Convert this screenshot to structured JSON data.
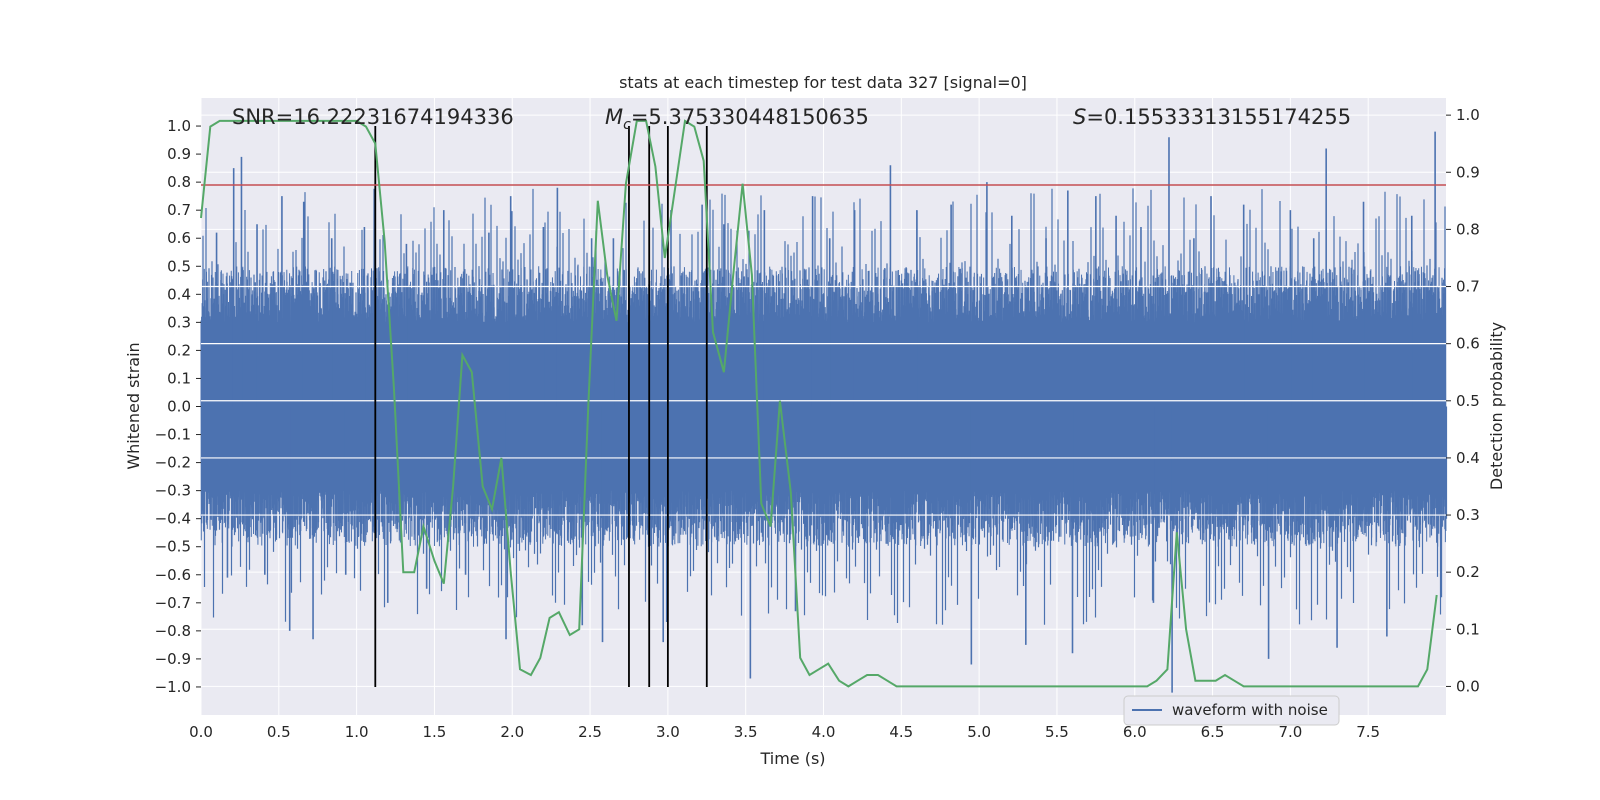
{
  "chart_data": {
    "type": "line",
    "title": "stats at each timestep for test data 327 [signal=0]",
    "xlabel": "Time (s)",
    "ylabel": "Whitened strain",
    "y2label": "Detection probability",
    "xlim": [
      0.0,
      8.0
    ],
    "ylim": [
      -1.1,
      1.1
    ],
    "y2lim": [
      -0.05,
      1.03
    ],
    "xticks": [
      "0.0",
      "0.5",
      "1.0",
      "1.5",
      "2.0",
      "2.5",
      "3.0",
      "3.5",
      "4.0",
      "4.5",
      "5.0",
      "5.5",
      "6.0",
      "6.5",
      "7.0",
      "7.5"
    ],
    "yticks": [
      "1.0",
      "0.9",
      "0.8",
      "0.7",
      "0.6",
      "0.5",
      "0.4",
      "0.3",
      "0.2",
      "0.1",
      "0.0",
      "−0.1",
      "−0.2",
      "−0.3",
      "−0.4",
      "−0.5",
      "−0.6",
      "−0.7",
      "−0.8",
      "−0.9",
      "−1.0"
    ],
    "y2ticks": [
      "1.0",
      "0.9",
      "0.8",
      "0.7",
      "0.6",
      "0.5",
      "0.4",
      "0.3",
      "0.2",
      "0.1",
      "0.0"
    ],
    "grid": true,
    "legend_position": "lower-right",
    "annotations": {
      "snr": "SNR=16.22231674194336",
      "mc_prefix": "M",
      "mc_sub": "c",
      "mc_value": "=5.375330448150635",
      "s_prefix": "S",
      "s_value": "=0.15533313155174255"
    },
    "series": [
      {
        "name": "waveform with noise",
        "axis": "left",
        "color": "#4c72b0",
        "style": "dense noise with typical amplitude approx ±0.4 and occasional spikes to ±1.0"
      },
      {
        "axis": "right",
        "color": "#55a868",
        "x": [
          0.0,
          0.06,
          0.12,
          0.2,
          0.3,
          0.4,
          0.5,
          0.6,
          0.7,
          0.8,
          0.9,
          1.0,
          1.06,
          1.12,
          1.18,
          1.24,
          1.3,
          1.37,
          1.43,
          1.5,
          1.56,
          1.62,
          1.68,
          1.74,
          1.81,
          1.87,
          1.93,
          1.99,
          2.05,
          2.12,
          2.18,
          2.24,
          2.3,
          2.37,
          2.43,
          2.49,
          2.55,
          2.61,
          2.67,
          2.73,
          2.8,
          2.86,
          2.92,
          2.98,
          3.04,
          3.11,
          3.17,
          3.23,
          3.29,
          3.36,
          3.42,
          3.48,
          3.54,
          3.6,
          3.66,
          3.72,
          3.79,
          3.85,
          3.91,
          3.97,
          4.03,
          4.1,
          4.16,
          4.22,
          4.28,
          4.35,
          4.41,
          4.47,
          4.53,
          4.6,
          4.66,
          4.72,
          4.78,
          4.84,
          4.9,
          4.97,
          5.03,
          5.09,
          5.15,
          5.21,
          5.28,
          5.34,
          5.4,
          5.46,
          5.52,
          5.59,
          5.65,
          5.71,
          5.77,
          5.83,
          5.9,
          5.96,
          6.02,
          6.08,
          6.14,
          6.21,
          6.27,
          6.33,
          6.39,
          6.45,
          6.52,
          6.58,
          6.64,
          6.7,
          6.76,
          6.83,
          6.89,
          6.95,
          7.01,
          7.07,
          7.14,
          7.2,
          7.26,
          7.32,
          7.38,
          7.45,
          7.51,
          7.57,
          7.63,
          7.7,
          7.76,
          7.82,
          7.88,
          7.94
        ],
        "values": [
          0.82,
          0.98,
          0.99,
          0.99,
          0.99,
          0.99,
          0.99,
          0.99,
          0.99,
          0.99,
          0.99,
          0.99,
          0.98,
          0.95,
          0.78,
          0.52,
          0.2,
          0.2,
          0.28,
          0.22,
          0.18,
          0.35,
          0.58,
          0.55,
          0.35,
          0.31,
          0.4,
          0.2,
          0.03,
          0.02,
          0.05,
          0.12,
          0.13,
          0.09,
          0.1,
          0.5,
          0.85,
          0.72,
          0.64,
          0.88,
          0.99,
          0.99,
          0.91,
          0.75,
          0.86,
          0.99,
          0.98,
          0.92,
          0.62,
          0.55,
          0.72,
          0.88,
          0.72,
          0.32,
          0.28,
          0.5,
          0.34,
          0.05,
          0.02,
          0.03,
          0.04,
          0.01,
          0.0,
          0.01,
          0.02,
          0.02,
          0.01,
          0.0,
          0.0,
          0.0,
          0.0,
          0.0,
          0.0,
          0.0,
          0.0,
          0.0,
          0.0,
          0.0,
          0.0,
          0.0,
          0.0,
          0.0,
          0.0,
          0.0,
          0.0,
          0.0,
          0.0,
          0.0,
          0.0,
          0.0,
          0.0,
          0.0,
          0.0,
          0.0,
          0.01,
          0.03,
          0.27,
          0.1,
          0.01,
          0.01,
          0.01,
          0.02,
          0.01,
          0.0,
          0.0,
          0.0,
          0.0,
          0.0,
          0.0,
          0.0,
          0.0,
          0.0,
          0.0,
          0.0,
          0.0,
          0.0,
          0.0,
          0.0,
          0.0,
          0.0,
          0.0,
          0.0,
          0.03,
          0.16
        ]
      }
    ],
    "threshold_line": {
      "axis": "left",
      "y": 0.79,
      "color": "#c44e52"
    },
    "vertical_lines": {
      "x": [
        1.12,
        2.75,
        2.88,
        3.0,
        3.25
      ],
      "y_from": -1.0,
      "y_to": 1.0,
      "color": "#000000"
    },
    "noise_spikes": [
      {
        "x": 0.1,
        "v": 0.62
      },
      {
        "x": 0.17,
        "v": -0.61
      },
      {
        "x": 0.21,
        "v": 0.85
      },
      {
        "x": 0.26,
        "v": 0.89
      },
      {
        "x": 0.36,
        "v": 0.65
      },
      {
        "x": 0.41,
        "v": -0.6
      },
      {
        "x": 0.52,
        "v": 0.75
      },
      {
        "x": 0.57,
        "v": -0.8
      },
      {
        "x": 0.66,
        "v": 0.73
      },
      {
        "x": 0.72,
        "v": -0.83
      },
      {
        "x": 0.84,
        "v": 0.6
      },
      {
        "x": 0.93,
        "v": -0.6
      },
      {
        "x": 1.05,
        "v": 0.64
      },
      {
        "x": 1.2,
        "v": -0.7
      },
      {
        "x": 1.32,
        "v": 0.58
      },
      {
        "x": 1.45,
        "v": -0.65
      },
      {
        "x": 1.56,
        "v": 0.7
      },
      {
        "x": 1.7,
        "v": -0.6
      },
      {
        "x": 1.85,
        "v": 0.62
      },
      {
        "x": 1.96,
        "v": -0.83
      },
      {
        "x": 1.99,
        "v": 0.75
      },
      {
        "x": 2.2,
        "v": 0.64
      },
      {
        "x": 2.29,
        "v": 0.78
      },
      {
        "x": 2.45,
        "v": -0.78
      },
      {
        "x": 2.51,
        "v": 0.6
      },
      {
        "x": 2.58,
        "v": -0.84
      },
      {
        "x": 2.65,
        "v": 0.6
      },
      {
        "x": 2.97,
        "v": -0.84
      },
      {
        "x": 3.02,
        "v": 0.7
      },
      {
        "x": 3.22,
        "v": 0.72
      },
      {
        "x": 3.36,
        "v": 0.65
      },
      {
        "x": 3.53,
        "v": -0.97
      },
      {
        "x": 3.62,
        "v": 0.7
      },
      {
        "x": 3.82,
        "v": -0.73
      },
      {
        "x": 3.93,
        "v": 0.75
      },
      {
        "x": 4.04,
        "v": 0.6
      },
      {
        "x": 4.2,
        "v": 0.7
      },
      {
        "x": 4.43,
        "v": 0.86
      },
      {
        "x": 4.6,
        "v": 0.7
      },
      {
        "x": 4.82,
        "v": 0.72
      },
      {
        "x": 4.95,
        "v": -0.92
      },
      {
        "x": 5.05,
        "v": 0.8
      },
      {
        "x": 5.21,
        "v": 0.68
      },
      {
        "x": 5.3,
        "v": -0.85
      },
      {
        "x": 5.43,
        "v": 0.6
      },
      {
        "x": 5.57,
        "v": 0.77
      },
      {
        "x": 5.6,
        "v": -0.88
      },
      {
        "x": 5.75,
        "v": 0.75
      },
      {
        "x": 5.88,
        "v": 0.68
      },
      {
        "x": 6.04,
        "v": 0.64
      },
      {
        "x": 6.12,
        "v": -0.7
      },
      {
        "x": 6.22,
        "v": 0.96
      },
      {
        "x": 6.24,
        "v": -1.02
      },
      {
        "x": 6.38,
        "v": 0.6
      },
      {
        "x": 6.49,
        "v": 0.75
      },
      {
        "x": 6.7,
        "v": 0.72
      },
      {
        "x": 6.86,
        "v": -0.9
      },
      {
        "x": 7.0,
        "v": 0.7
      },
      {
        "x": 7.15,
        "v": 0.6
      },
      {
        "x": 7.23,
        "v": 0.92
      },
      {
        "x": 7.3,
        "v": -0.86
      },
      {
        "x": 7.47,
        "v": 0.73
      },
      {
        "x": 7.62,
        "v": -0.82
      },
      {
        "x": 7.78,
        "v": 0.68
      },
      {
        "x": 7.93,
        "v": 0.98
      },
      {
        "x": 7.97,
        "v": -0.68
      }
    ],
    "colors": {
      "axes_bg": "#eaeaf2",
      "grid": "#ffffff",
      "text": "#262626"
    }
  }
}
